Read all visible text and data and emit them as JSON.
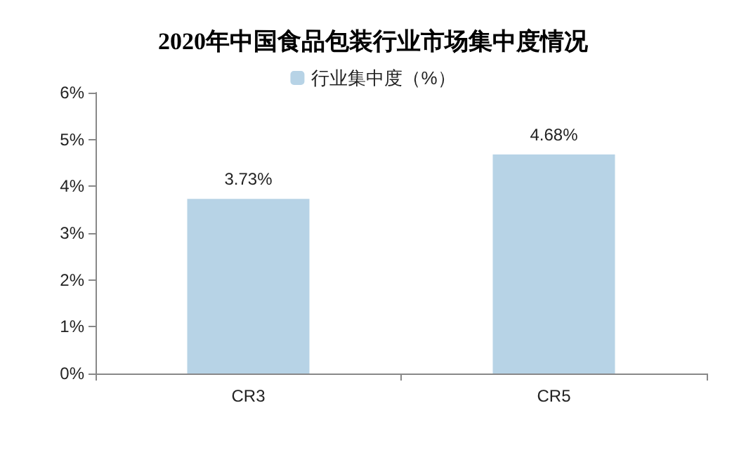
{
  "chart_data": {
    "type": "bar",
    "title": "2020年中国食品包装行业市场集中度情况",
    "categories": [
      "CR3",
      "CR5"
    ],
    "series": [
      {
        "name": "行业集中度（%）",
        "color": "#b7d3e6",
        "values": [
          3.73,
          4.68
        ],
        "value_labels": [
          "3.73%",
          "4.68%"
        ]
      }
    ],
    "ylim": [
      0,
      6
    ],
    "yticks": [
      {
        "value": 0,
        "label": "0%"
      },
      {
        "value": 1,
        "label": "1%"
      },
      {
        "value": 2,
        "label": "2%"
      },
      {
        "value": 3,
        "label": "3%"
      },
      {
        "value": 4,
        "label": "4%"
      },
      {
        "value": 5,
        "label": "5%"
      },
      {
        "value": 6,
        "label": "6%"
      }
    ],
    "grid": false,
    "legend": "top"
  }
}
